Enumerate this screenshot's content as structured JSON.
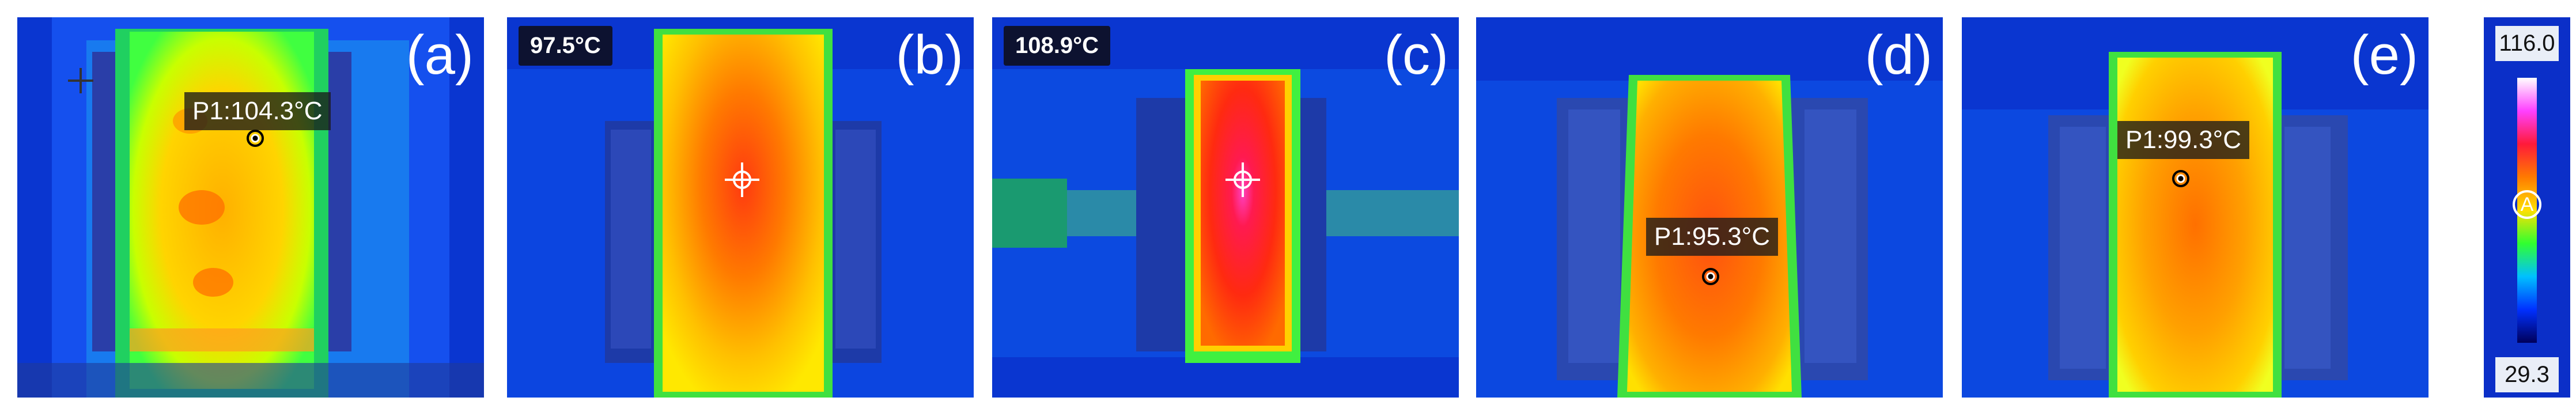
{
  "panels": [
    {
      "letter": "(a)",
      "label": "P1:104.3°C"
    },
    {
      "letter": "(b)",
      "badge": "97.5°C"
    },
    {
      "letter": "(c)",
      "badge": "108.9°C"
    },
    {
      "letter": "(d)",
      "label": "P1:95.3°C"
    },
    {
      "letter": "(e)",
      "label": "P1:99.3°C"
    }
  ],
  "scale": {
    "max": "116.0",
    "min": "29.3",
    "mode": "A",
    "colors": [
      "#ffffff",
      "#ff40ff",
      "#ff1a3a",
      "#ff7a00",
      "#ffe000",
      "#30ff30",
      "#00c0ff",
      "#0030ff",
      "#00005a"
    ]
  }
}
